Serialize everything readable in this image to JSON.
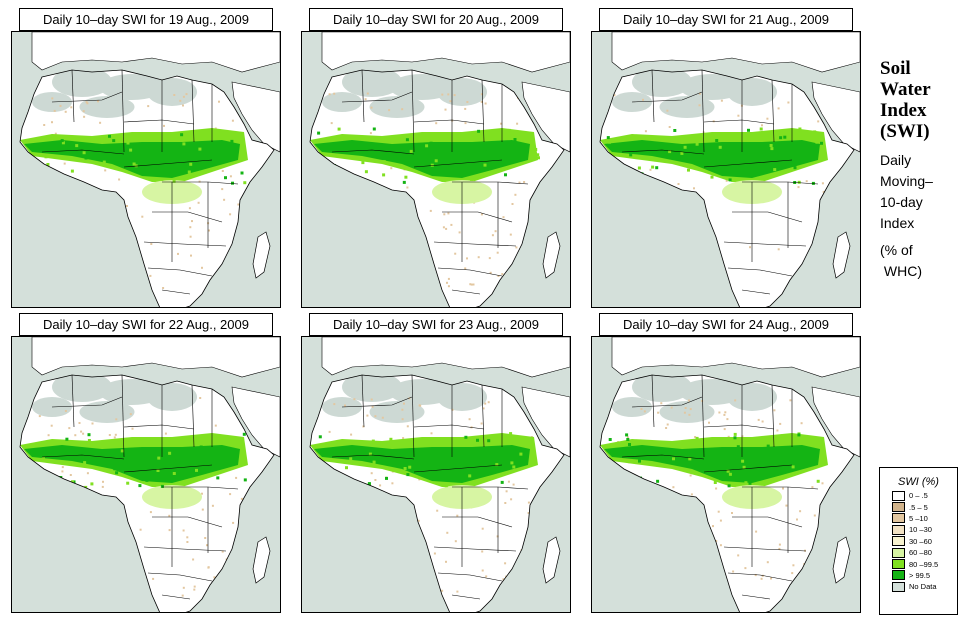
{
  "panels": [
    {
      "title": "Daily 10–day SWI for  19 Aug., 2009",
      "pct_green": 0.3,
      "pct_dry": 0.2
    },
    {
      "title": "Daily 10–day SWI for  20 Aug., 2009",
      "pct_green": 0.3,
      "pct_dry": 0.25
    },
    {
      "title": "Daily 10–day SWI for  21 Aug., 2009",
      "pct_green": 0.3,
      "pct_dry": 0.15
    },
    {
      "title": "Daily 10–day SWI for  22 Aug., 2009",
      "pct_green": 0.3,
      "pct_dry": 0.25
    },
    {
      "title": "Daily 10–day SWI for  23 Aug., 2009",
      "pct_green": 0.28,
      "pct_dry": 0.3
    },
    {
      "title": "Daily 10–day SWI for  24 Aug., 2009",
      "pct_green": 0.28,
      "pct_dry": 0.3
    }
  ],
  "side": {
    "title_lines": [
      "Soil",
      "Water",
      "Index",
      "(SWI)"
    ],
    "subtitle_lines": [
      "Daily",
      "Moving–",
      "10-day",
      "Index"
    ],
    "unit_lines": [
      "(% of",
      " WHC)"
    ]
  },
  "legend": {
    "title": "SWI (%)",
    "items": [
      {
        "label": "0 – .5",
        "color": "#ffffff"
      },
      {
        "label": ".5 – 5",
        "color": "#d2b48c"
      },
      {
        "label": "5 –10",
        "color": "#e3c7a0"
      },
      {
        "label": "10 –30",
        "color": "#f2e2c4"
      },
      {
        "label": "30 –60",
        "color": "#f8f3d0"
      },
      {
        "label": "60 –80",
        "color": "#d7f5a3"
      },
      {
        "label": "80 –99.5",
        "color": "#80e020"
      },
      {
        "label": "> 99.5",
        "color": "#14b414"
      },
      {
        "label": "No Data",
        "color": "#d4e0da"
      }
    ]
  },
  "colors": {
    "ocean": "#d4e0da",
    "land": "#ffffff",
    "desert_nodata": "#cdd9d4",
    "wet": "#14b414",
    "moist": "#80e020",
    "light_moist": "#d7f5a3",
    "dry": "#e3c7a0"
  }
}
